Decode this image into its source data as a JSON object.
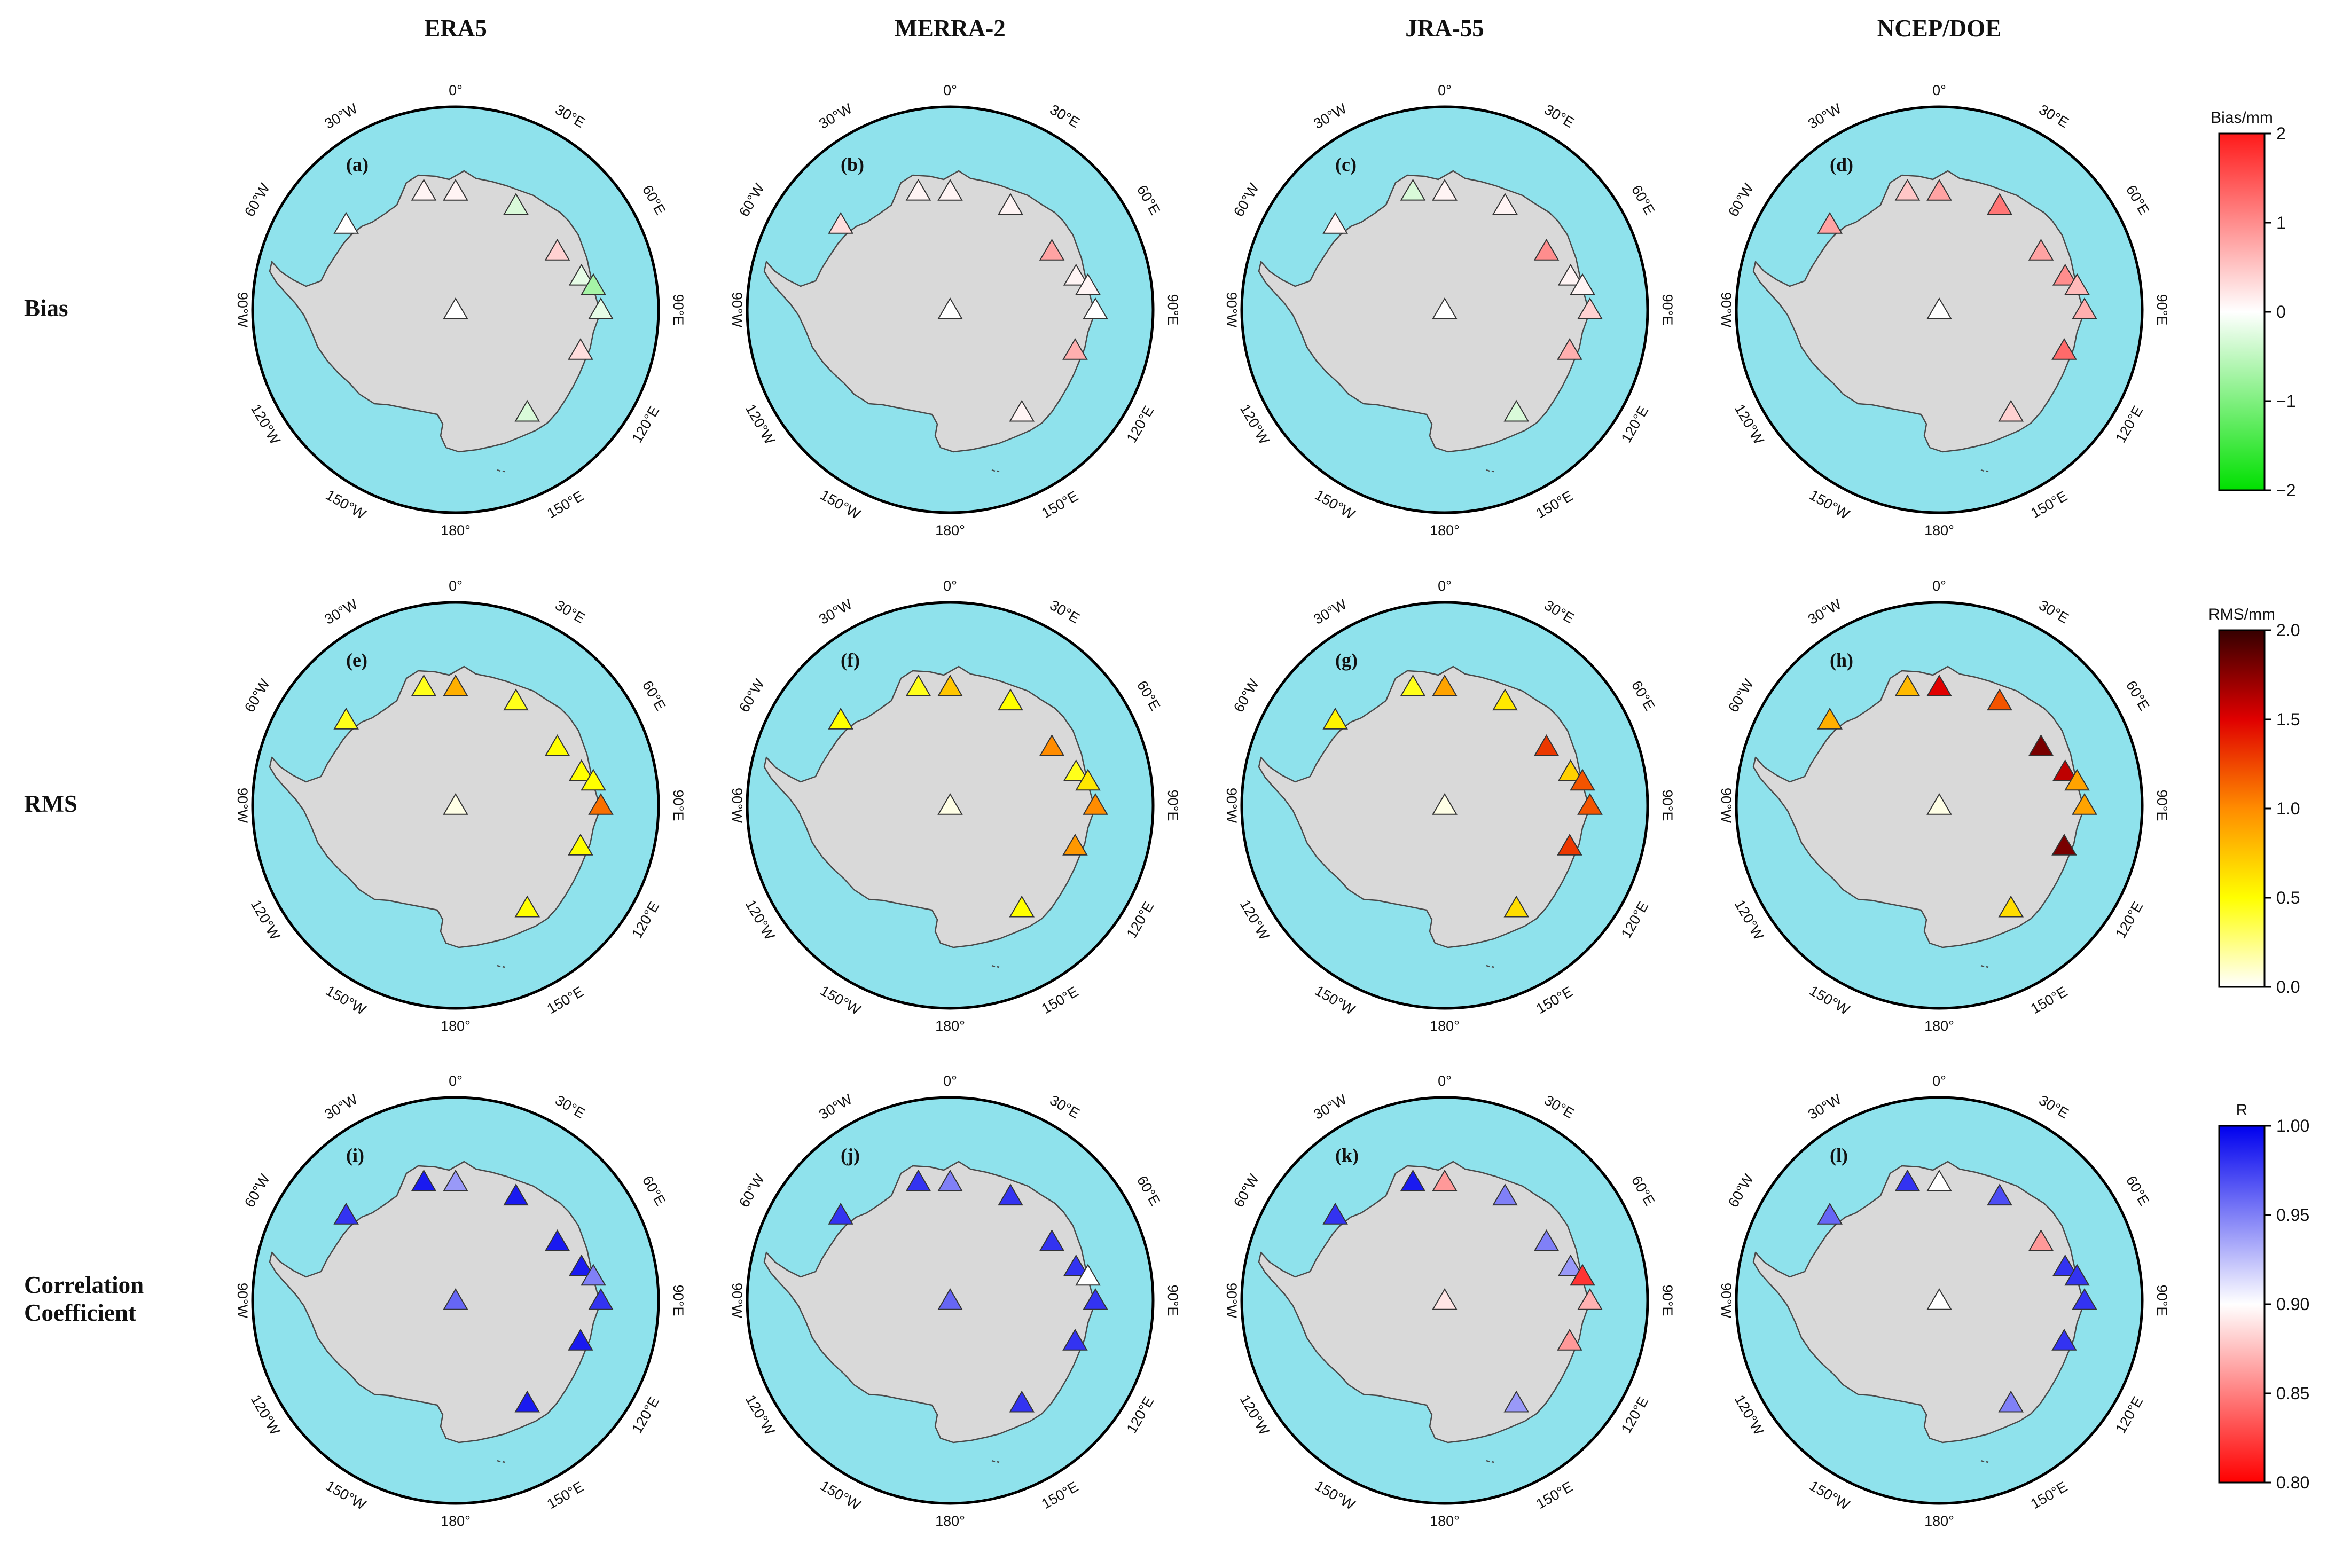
{
  "columns": [
    "ERA5",
    "MERRA-2",
    "JRA-55",
    "NCEP/DOE"
  ],
  "rows": [
    {
      "label_lines": [
        "Bias"
      ],
      "key": "bias"
    },
    {
      "label_lines": [
        "RMS"
      ],
      "key": "rms"
    },
    {
      "label_lines": [
        "Correlation",
        "Coefficient"
      ],
      "key": "r"
    }
  ],
  "panel_letters": [
    [
      "(a)",
      "(b)",
      "(c)",
      "(d)"
    ],
    [
      "(e)",
      "(f)",
      "(g)",
      "(h)"
    ],
    [
      "(i)",
      "(j)",
      "(k)",
      "(l)"
    ]
  ],
  "map_labels": {
    "top": "0°",
    "bottom": "180°",
    "left": "90°W",
    "right": "90°E",
    "ring": [
      "30°E",
      "60°E",
      "120°E",
      "150°E",
      "150°W",
      "120°W",
      "60°W",
      "30°W"
    ]
  },
  "colors": {
    "ocean": "#8fe2ec",
    "land": "#d9d9d9",
    "coast": "#4a4a4a",
    "frame": "#000000"
  },
  "colorbars": [
    {
      "key": "bias",
      "title": "Bias/mm",
      "min": -2,
      "max": 2,
      "ticks": [
        "2",
        "1",
        "0",
        "−1",
        "−2"
      ],
      "tick_values": [
        2,
        1,
        0,
        -1,
        -2
      ],
      "colors": [
        "#00e000",
        "#ffffff",
        "#ff1a1a"
      ]
    },
    {
      "key": "rms",
      "title": "RMS/mm",
      "min": 0,
      "max": 2,
      "ticks": [
        "2.0",
        "1.5",
        "1.0",
        "0.5",
        "0.0"
      ],
      "tick_values": [
        2.0,
        1.5,
        1.0,
        0.5,
        0.0
      ],
      "colors": [
        "#ffffff",
        "#ffff00",
        "#ff8c00",
        "#e00000",
        "#350000"
      ]
    },
    {
      "key": "r",
      "title": "R",
      "min": 0.8,
      "max": 1.0,
      "ticks": [
        "1.00",
        "0.95",
        "0.90",
        "0.85",
        "0.80"
      ],
      "tick_values": [
        1.0,
        0.95,
        0.9,
        0.85,
        0.8
      ],
      "colors": [
        "#ff0000",
        "#ffffff",
        "#0000ee"
      ]
    }
  ],
  "stations": [
    {
      "name": "s1",
      "lon": -15
    },
    {
      "name": "s2",
      "lon": 0
    },
    {
      "name": "s3",
      "lon": 30
    },
    {
      "name": "s4",
      "lon": 60
    },
    {
      "name": "s5",
      "lon": 75
    },
    {
      "name": "s6",
      "lon": 80
    },
    {
      "name": "s7",
      "lon": 90
    },
    {
      "name": "s8",
      "lon": 108
    },
    {
      "name": "s9",
      "lon": 145
    },
    {
      "name": "s10",
      "lon": -52
    },
    {
      "name": "s11",
      "lon": 180
    },
    {
      "name": "s12",
      "lon": 0,
      "pole": true
    }
  ],
  "station_values": {
    "bias": [
      [
        0.1,
        0.1,
        -0.3,
        0.4,
        -0.2,
        -0.7,
        -0.2,
        0.3,
        -0.3,
        0.0,
        0.0,
        0.0
      ],
      [
        0.1,
        0.1,
        0.1,
        0.8,
        0.1,
        0.1,
        0.0,
        0.7,
        0.1,
        0.3,
        0.0,
        0.0
      ],
      [
        -0.3,
        0.1,
        0.1,
        1.0,
        0.1,
        0.1,
        0.4,
        0.7,
        -0.3,
        0.1,
        0.0,
        0.0
      ],
      [
        0.5,
        0.8,
        1.2,
        0.8,
        1.0,
        0.6,
        0.7,
        1.3,
        0.4,
        0.8,
        0.0,
        0.0
      ]
    ],
    "rms": [
      [
        0.45,
        0.85,
        0.45,
        0.5,
        0.5,
        0.5,
        1.1,
        0.5,
        0.5,
        0.45,
        0.05,
        0.05
      ],
      [
        0.45,
        0.75,
        0.5,
        1.0,
        0.45,
        0.6,
        1.0,
        0.95,
        0.5,
        0.5,
        0.05,
        0.05
      ],
      [
        0.45,
        0.9,
        0.6,
        1.3,
        0.7,
        1.2,
        1.2,
        1.3,
        0.65,
        0.55,
        0.05,
        0.05
      ],
      [
        0.8,
        1.5,
        1.2,
        1.8,
        1.6,
        0.9,
        0.9,
        1.8,
        0.65,
        0.85,
        0.05,
        0.05
      ]
    ],
    "r": [
      [
        0.99,
        0.94,
        0.99,
        0.99,
        0.99,
        0.95,
        0.98,
        0.99,
        0.99,
        0.98,
        0.96,
        0.96
      ],
      [
        0.98,
        0.95,
        0.98,
        0.98,
        0.98,
        0.9,
        0.98,
        0.98,
        0.98,
        0.98,
        0.96,
        0.96
      ],
      [
        0.99,
        0.86,
        0.95,
        0.95,
        0.94,
        0.82,
        0.87,
        0.86,
        0.94,
        0.98,
        0.89,
        0.89
      ],
      [
        0.98,
        0.9,
        0.97,
        0.86,
        0.98,
        0.98,
        0.98,
        0.98,
        0.95,
        0.96,
        0.9,
        0.9
      ]
    ]
  }
}
